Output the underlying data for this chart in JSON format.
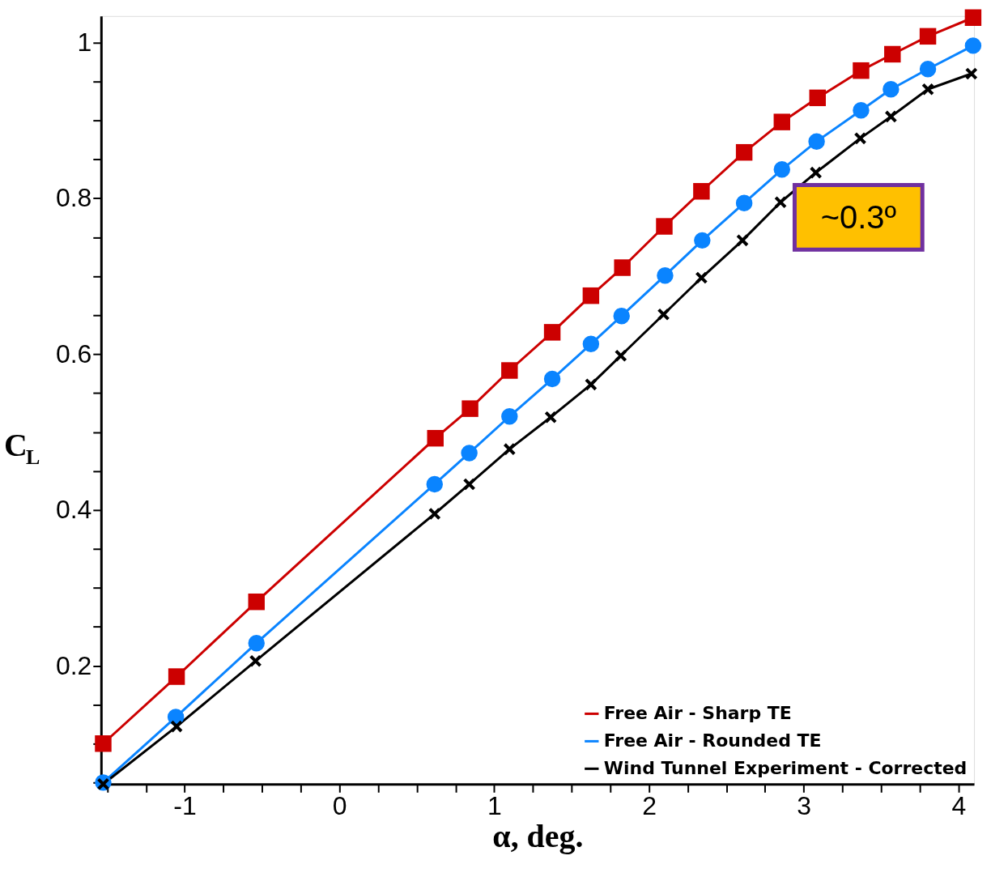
{
  "chart_data": {
    "type": "line",
    "xlabel": "α, deg.",
    "ylabel": "C$_{L}$",
    "xlim": [
      -1.54,
      4.1
    ],
    "ylim": [
      0.048,
      1.034
    ],
    "xticks": [
      {
        "value": -1.5,
        "label": null
      },
      {
        "value": -1.25,
        "label": null
      },
      -1,
      {
        "value": -0.75,
        "label": null
      },
      {
        "value": -0.5,
        "label": null
      },
      {
        "value": -0.25,
        "label": null
      },
      0,
      {
        "value": 0.25,
        "label": null
      },
      {
        "value": 0.5,
        "label": null
      },
      {
        "value": 0.75,
        "label": null
      },
      1,
      {
        "value": 1.25,
        "label": null
      },
      {
        "value": 1.5,
        "label": null
      },
      {
        "value": 1.75,
        "label": null
      },
      2,
      {
        "value": 2.25,
        "label": null
      },
      {
        "value": 2.5,
        "label": null
      },
      {
        "value": 2.75,
        "label": null
      },
      3,
      {
        "value": 3.25,
        "label": null
      },
      {
        "value": 3.5,
        "label": null
      },
      {
        "value": 3.75,
        "label": null
      },
      4
    ],
    "yticks": [
      {
        "value": 0.05,
        "label": null
      },
      {
        "value": 0.1,
        "label": null
      },
      {
        "value": 0.15,
        "label": null
      },
      0.2,
      {
        "value": 0.25,
        "label": null
      },
      {
        "value": 0.3,
        "label": null
      },
      {
        "value": 0.35,
        "label": null
      },
      0.4,
      {
        "value": 0.45,
        "label": null
      },
      {
        "value": 0.5,
        "label": null
      },
      {
        "value": 0.55,
        "label": null
      },
      0.6,
      {
        "value": 0.65,
        "label": null
      },
      {
        "value": 0.7,
        "label": null
      },
      {
        "value": 0.75,
        "label": null
      },
      0.8,
      {
        "value": 0.85,
        "label": null
      },
      {
        "value": 0.9,
        "label": null
      },
      {
        "value": 0.95,
        "label": null
      },
      1
    ],
    "grid": false,
    "legend": "bottom right",
    "line_style": "solid",
    "series": [
      {
        "name": "Free Air - Sharp TE",
        "color": "#cc0000",
        "marker": "square",
        "x": [
          -1.526,
          -1.052,
          -0.536,
          0.62,
          0.844,
          1.099,
          1.375,
          1.625,
          1.828,
          2.099,
          2.339,
          2.615,
          2.859,
          3.089,
          3.37,
          3.573,
          3.802,
          4.094
        ],
        "values": [
          0.1,
          0.186,
          0.282,
          0.492,
          0.53,
          0.579,
          0.628,
          0.675,
          0.711,
          0.764,
          0.809,
          0.859,
          0.898,
          0.929,
          0.964,
          0.985,
          1.008,
          1.032
        ]
      },
      {
        "name": "Free Air - Rounded TE",
        "color": "#0a84ff",
        "marker": "circle",
        "x": [
          -1.526,
          -1.057,
          -0.536,
          0.615,
          0.839,
          1.099,
          1.375,
          1.625,
          1.823,
          2.104,
          2.344,
          2.615,
          2.859,
          3.083,
          3.37,
          3.563,
          3.802,
          4.094
        ],
        "values": [
          0.05,
          0.134,
          0.229,
          0.433,
          0.473,
          0.52,
          0.568,
          0.613,
          0.649,
          0.701,
          0.746,
          0.794,
          0.837,
          0.873,
          0.913,
          0.94,
          0.966,
          0.996
        ]
      },
      {
        "name": "Wind Tunnel Experiment - Corrected",
        "color": "#000000",
        "marker": "cross",
        "x": [
          -1.526,
          -1.052,
          -0.542,
          0.615,
          0.839,
          1.099,
          1.365,
          1.625,
          1.818,
          2.094,
          2.339,
          2.604,
          2.85,
          3.078,
          3.365,
          3.563,
          3.802,
          4.083
        ],
        "values": [
          0.048,
          0.122,
          0.206,
          0.395,
          0.433,
          0.478,
          0.519,
          0.561,
          0.598,
          0.651,
          0.698,
          0.746,
          0.795,
          0.833,
          0.877,
          0.905,
          0.94,
          0.96
        ]
      }
    ],
    "annotations": [
      {
        "text": "~0.3º",
        "x": 2.8,
        "y": 0.84
      }
    ]
  }
}
